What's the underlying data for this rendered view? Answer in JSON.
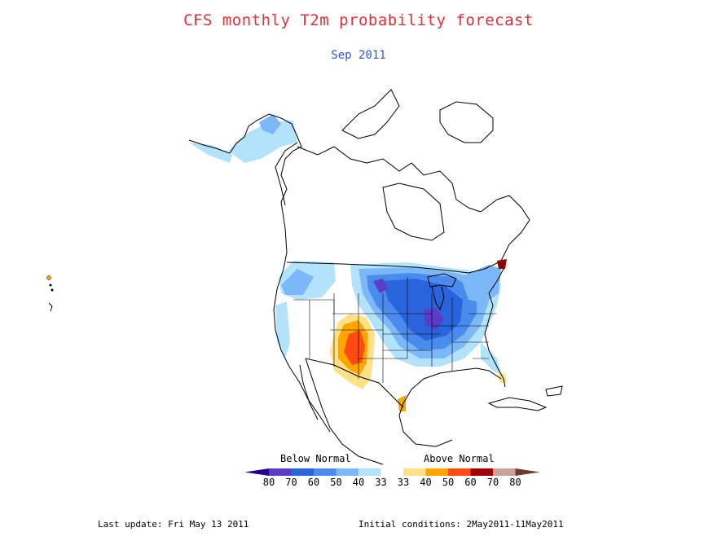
{
  "title": "CFS monthly T2m probability forecast",
  "subtitle": "Sep 2011",
  "legend": {
    "below_label": "Below Normal",
    "above_label": "Above Normal",
    "tick_labels": [
      "80",
      "70",
      "60",
      "50",
      "40",
      "33",
      "33",
      "40",
      "50",
      "60",
      "70",
      "80"
    ],
    "colors": [
      "#23008c",
      "#5a3cc8",
      "#2a64dc",
      "#4a8cee",
      "#7cb8f7",
      "#b3e2fb",
      "#ffffff",
      "#ffe185",
      "#ffa500",
      "#ff4a12",
      "#a20000",
      "#c9a29c",
      "#6e3a2a"
    ]
  },
  "footer": {
    "last_update": "Last update: Fri May 13 2011",
    "initial_conditions": "Initial conditions: 2May2011-11May2011"
  },
  "colors": {
    "title": "#e0303a",
    "subtitle": "#3355cc"
  }
}
